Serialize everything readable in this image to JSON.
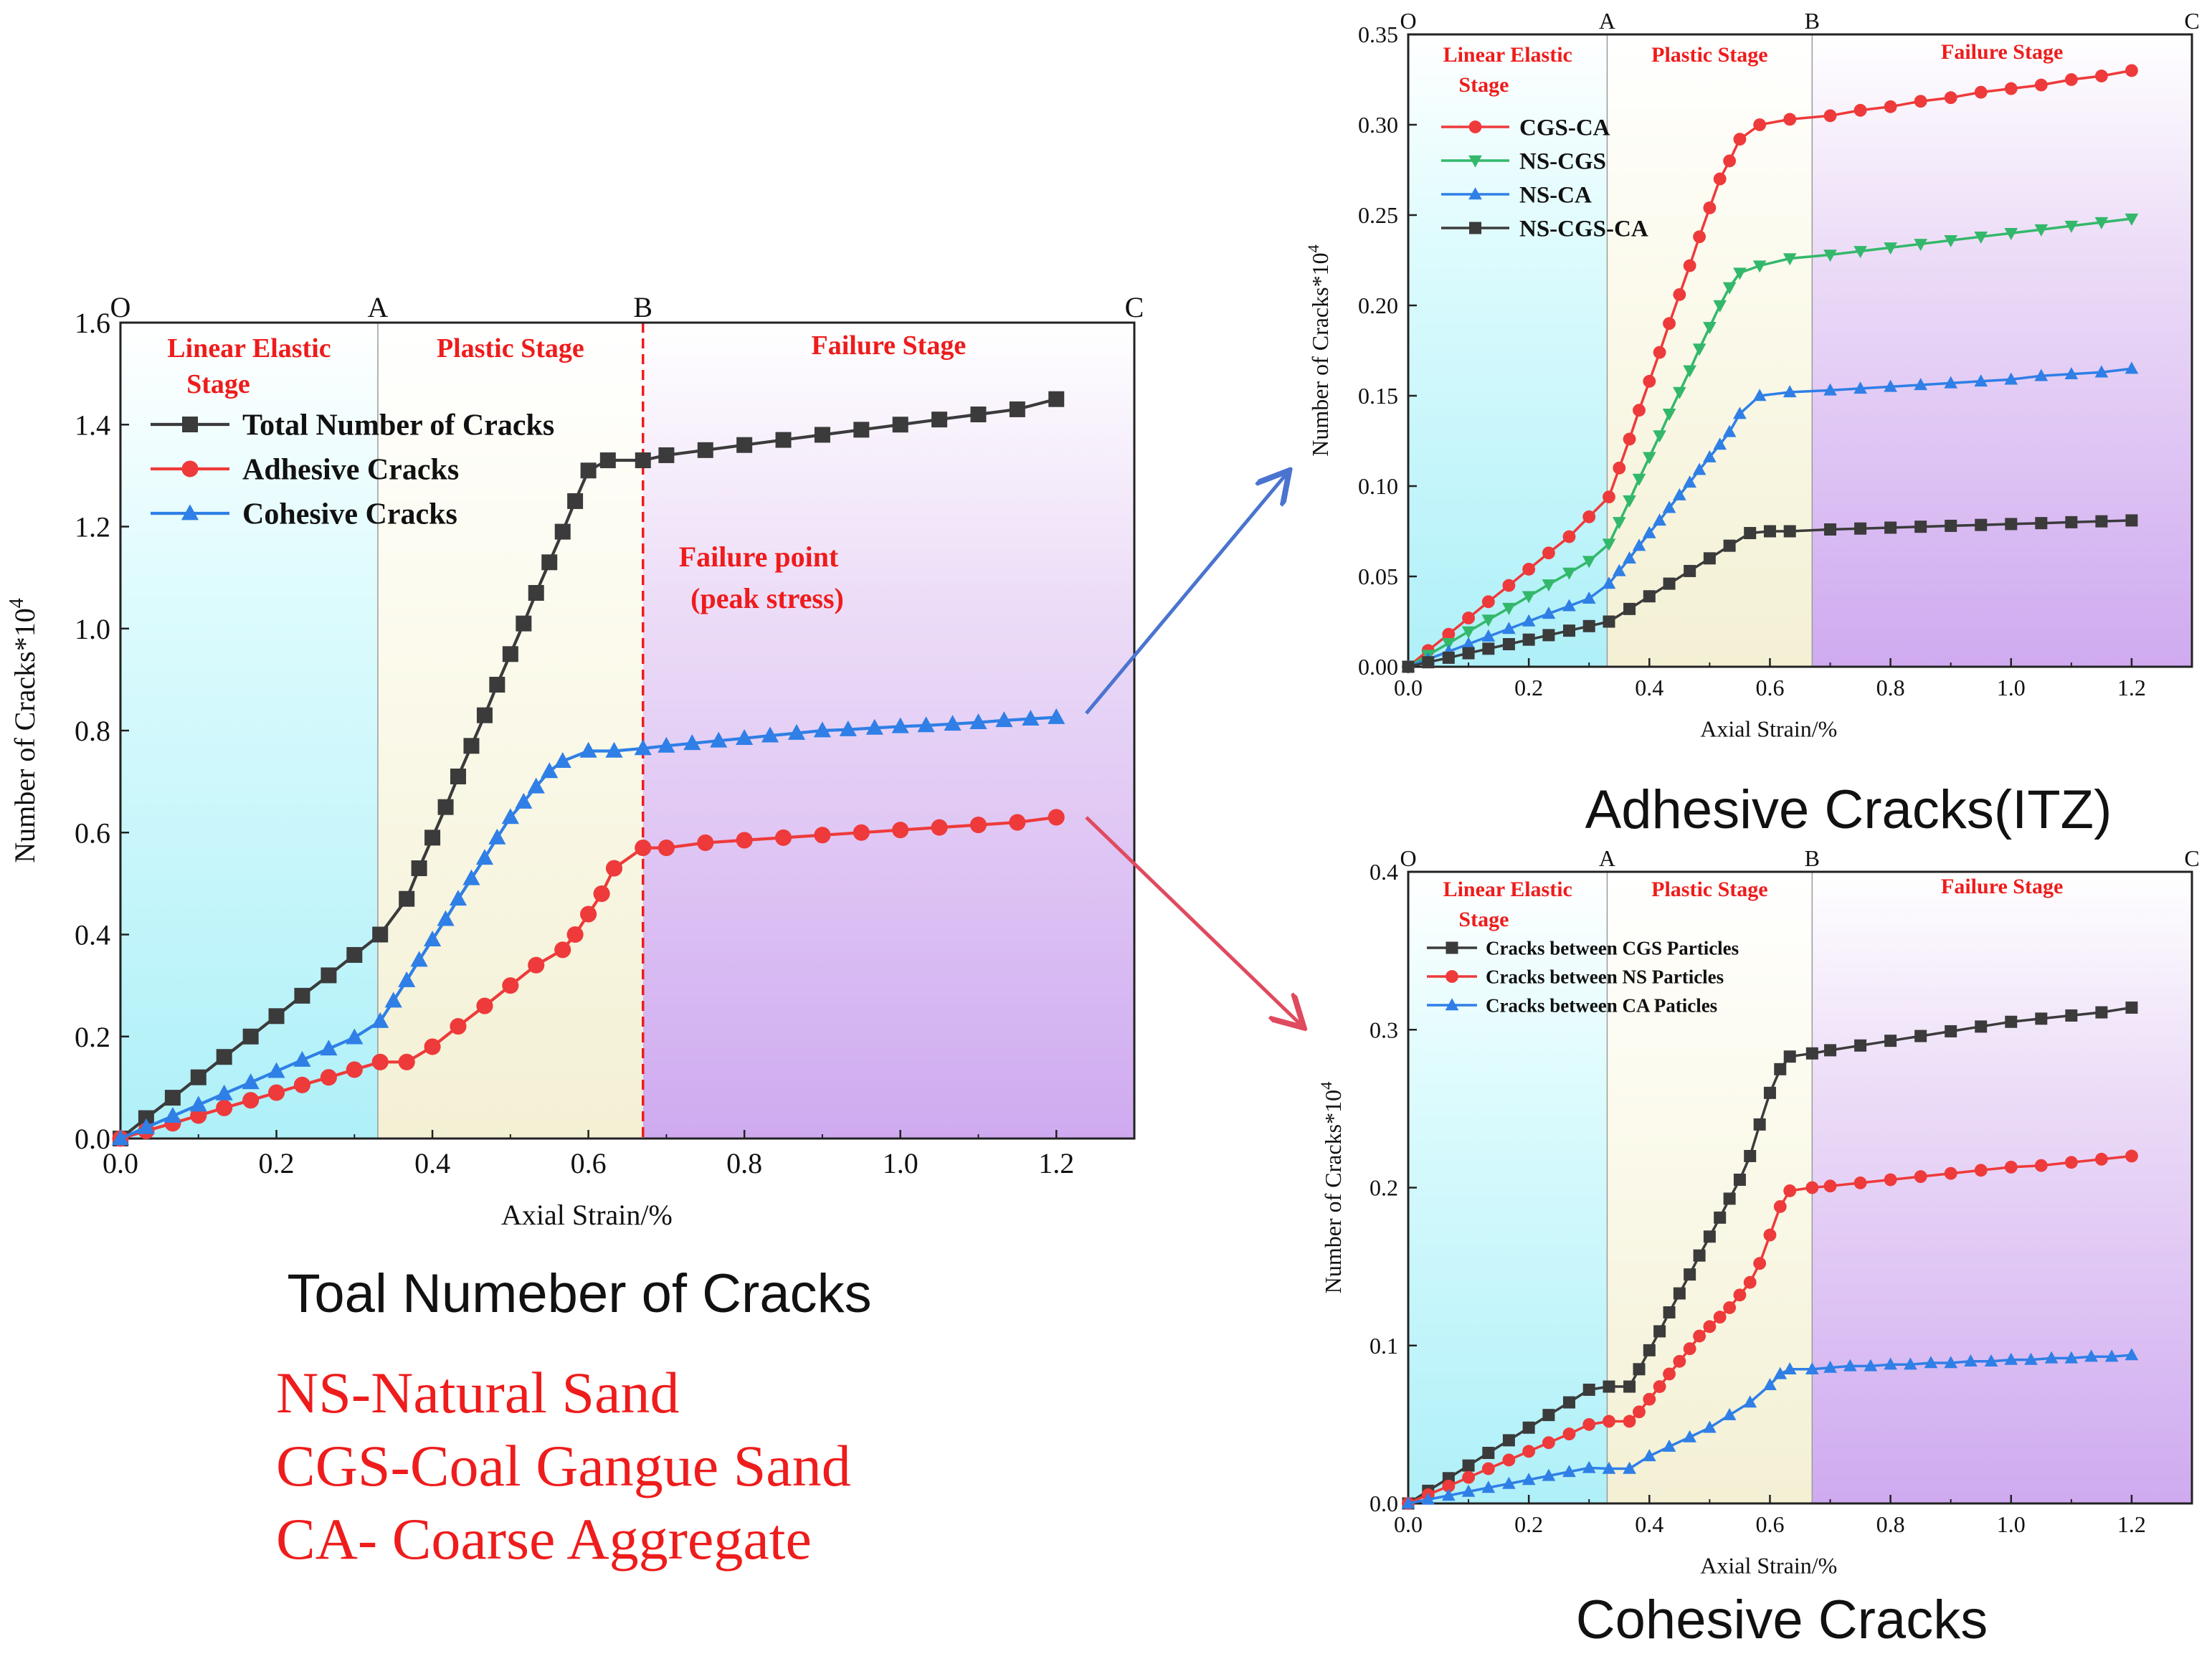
{
  "colors": {
    "stage_linear": "#c9f6fb",
    "stage_plastic": "#f7f5dd",
    "stage_failure": "#dcc0f2",
    "stage_label": "#ee1c1c",
    "black_series": "#3b3b3b",
    "red_series": "#ee3a3a",
    "blue_series": "#2f7fe6",
    "green_series": "#33b86b",
    "arrow_blue": "#4a74cf",
    "arrow_red": "#e04a5e",
    "legend_text_red": "#ee1c1c"
  },
  "titles": {
    "main": "Toal Numeber of Cracks",
    "top_right": "Adhesive Cracks(ITZ)",
    "bottom_right": "Cohesive Cracks"
  },
  "abbreviations": [
    "NS-Natural Sand",
    "CGS-Coal Gangue Sand",
    "CA- Coarse Aggregate"
  ],
  "annotation": {
    "line1": "Failure point",
    "line2": "(peak stress)"
  },
  "chart_data": [
    {
      "id": "main",
      "type": "line",
      "title": "Toal Numeber of Cracks",
      "xlabel": "Axial Strain/%",
      "ylabel": "Number of Cracks*10^4",
      "xlim": [
        0,
        1.3
      ],
      "ylim": [
        0,
        1.6
      ],
      "xticks": [
        "0.0",
        "0.2",
        "0.4",
        "0.6",
        "0.8",
        "1.0",
        "1.2"
      ],
      "yticks": [
        "0.0",
        "0.2",
        "0.4",
        "0.6",
        "0.8",
        "1.0",
        "1.2",
        "1.4",
        "1.6"
      ],
      "stages": {
        "boundaries": [
          0.33,
          0.67
        ],
        "points": [
          "O",
          "A",
          "B",
          "C"
        ],
        "labels": [
          "Linear Elastic",
          "Stage",
          "Plastic Stage",
          "Failure Stage"
        ]
      },
      "failure_line_x": 0.67,
      "series": [
        {
          "name": "Total Number of Cracks",
          "marker": "square",
          "color": "#3b3b3b",
          "x": [
            0,
            0.033,
            0.067,
            0.1,
            0.133,
            0.167,
            0.2,
            0.233,
            0.267,
            0.3,
            0.333,
            0.367,
            0.383,
            0.4,
            0.417,
            0.433,
            0.45,
            0.467,
            0.483,
            0.5,
            0.517,
            0.533,
            0.55,
            0.567,
            0.583,
            0.6,
            0.625,
            0.67,
            0.7,
            0.75,
            0.8,
            0.85,
            0.9,
            0.95,
            1.0,
            1.05,
            1.1,
            1.15,
            1.2
          ],
          "y": [
            0,
            0.04,
            0.08,
            0.12,
            0.16,
            0.2,
            0.24,
            0.28,
            0.32,
            0.36,
            0.4,
            0.47,
            0.53,
            0.59,
            0.65,
            0.71,
            0.77,
            0.83,
            0.89,
            0.95,
            1.01,
            1.07,
            1.13,
            1.19,
            1.25,
            1.31,
            1.33,
            1.33,
            1.34,
            1.35,
            1.36,
            1.37,
            1.38,
            1.39,
            1.4,
            1.41,
            1.42,
            1.43,
            1.45
          ]
        },
        {
          "name": "Adhesive Cracks",
          "marker": "circle",
          "color": "#ee3a3a",
          "x": [
            0,
            0.033,
            0.067,
            0.1,
            0.133,
            0.167,
            0.2,
            0.233,
            0.267,
            0.3,
            0.333,
            0.367,
            0.4,
            0.433,
            0.467,
            0.5,
            0.533,
            0.567,
            0.583,
            0.6,
            0.617,
            0.633,
            0.67,
            0.7,
            0.75,
            0.8,
            0.85,
            0.9,
            0.95,
            1.0,
            1.05,
            1.1,
            1.15,
            1.2
          ],
          "y": [
            0,
            0.015,
            0.03,
            0.045,
            0.06,
            0.075,
            0.09,
            0.105,
            0.12,
            0.135,
            0.15,
            0.15,
            0.18,
            0.22,
            0.26,
            0.3,
            0.34,
            0.37,
            0.4,
            0.44,
            0.48,
            0.53,
            0.57,
            0.57,
            0.58,
            0.585,
            0.59,
            0.595,
            0.6,
            0.605,
            0.61,
            0.615,
            0.62,
            0.63
          ]
        },
        {
          "name": "Cohesive Cracks",
          "marker": "triangle",
          "color": "#2f7fe6",
          "x": [
            0,
            0.033,
            0.067,
            0.1,
            0.133,
            0.167,
            0.2,
            0.233,
            0.267,
            0.3,
            0.333,
            0.35,
            0.367,
            0.383,
            0.4,
            0.417,
            0.433,
            0.45,
            0.467,
            0.483,
            0.5,
            0.517,
            0.533,
            0.55,
            0.567,
            0.6,
            0.633,
            0.67,
            0.7,
            0.733,
            0.767,
            0.8,
            0.833,
            0.867,
            0.9,
            0.933,
            0.967,
            1.0,
            1.033,
            1.067,
            1.1,
            1.133,
            1.167,
            1.2
          ],
          "y": [
            0,
            0.022,
            0.044,
            0.066,
            0.088,
            0.11,
            0.132,
            0.154,
            0.176,
            0.198,
            0.23,
            0.27,
            0.31,
            0.35,
            0.39,
            0.43,
            0.47,
            0.51,
            0.55,
            0.59,
            0.63,
            0.66,
            0.69,
            0.72,
            0.74,
            0.76,
            0.76,
            0.765,
            0.77,
            0.775,
            0.78,
            0.785,
            0.79,
            0.795,
            0.8,
            0.802,
            0.805,
            0.808,
            0.81,
            0.813,
            0.816,
            0.82,
            0.823,
            0.826
          ]
        }
      ]
    },
    {
      "id": "adhesive",
      "type": "line",
      "title": "Adhesive Cracks(ITZ)",
      "xlabel": "Axial Strain/%",
      "ylabel": "Number of Cracks*10^4",
      "xlim": [
        0,
        1.3
      ],
      "ylim": [
        0,
        0.35
      ],
      "xticks": [
        "0.0",
        "0.2",
        "0.4",
        "0.6",
        "0.8",
        "1.0",
        "1.2"
      ],
      "yticks": [
        "0.00",
        "0.05",
        "0.10",
        "0.15",
        "0.20",
        "0.25",
        "0.30",
        "0.35"
      ],
      "stages": {
        "boundaries": [
          0.33,
          0.67
        ],
        "points": [
          "O",
          "A",
          "B",
          "C"
        ],
        "labels": [
          "Linear Elastic",
          "Stage",
          "Plastic Stage",
          "Failure Stage"
        ]
      },
      "series": [
        {
          "name": "CGS-CA",
          "marker": "circle",
          "color": "#ee3a3a",
          "x": [
            0,
            0.033,
            0.067,
            0.1,
            0.133,
            0.167,
            0.2,
            0.233,
            0.267,
            0.3,
            0.333,
            0.35,
            0.367,
            0.383,
            0.4,
            0.417,
            0.433,
            0.45,
            0.467,
            0.483,
            0.5,
            0.517,
            0.533,
            0.55,
            0.583,
            0.633,
            0.7,
            0.75,
            0.8,
            0.85,
            0.9,
            0.95,
            1.0,
            1.05,
            1.1,
            1.15,
            1.2
          ],
          "y": [
            0,
            0.009,
            0.018,
            0.027,
            0.036,
            0.045,
            0.054,
            0.063,
            0.072,
            0.083,
            0.094,
            0.11,
            0.126,
            0.142,
            0.158,
            0.174,
            0.19,
            0.206,
            0.222,
            0.238,
            0.254,
            0.27,
            0.28,
            0.292,
            0.3,
            0.303,
            0.305,
            0.308,
            0.31,
            0.313,
            0.315,
            0.318,
            0.32,
            0.322,
            0.325,
            0.327,
            0.33
          ]
        },
        {
          "name": "NS-CGS",
          "marker": "triangle-down",
          "color": "#33b86b",
          "x": [
            0,
            0.033,
            0.067,
            0.1,
            0.133,
            0.167,
            0.2,
            0.233,
            0.267,
            0.3,
            0.333,
            0.35,
            0.367,
            0.383,
            0.4,
            0.417,
            0.433,
            0.45,
            0.467,
            0.483,
            0.5,
            0.517,
            0.533,
            0.55,
            0.583,
            0.633,
            0.7,
            0.75,
            0.8,
            0.85,
            0.9,
            0.95,
            1.0,
            1.05,
            1.1,
            1.15,
            1.2
          ],
          "y": [
            0,
            0.0065,
            0.013,
            0.0195,
            0.026,
            0.0325,
            0.039,
            0.0455,
            0.052,
            0.0585,
            0.068,
            0.08,
            0.092,
            0.104,
            0.116,
            0.128,
            0.14,
            0.152,
            0.164,
            0.176,
            0.188,
            0.2,
            0.21,
            0.218,
            0.222,
            0.226,
            0.228,
            0.23,
            0.232,
            0.234,
            0.236,
            0.238,
            0.24,
            0.242,
            0.244,
            0.246,
            0.248
          ]
        },
        {
          "name": "NS-CA",
          "marker": "triangle",
          "color": "#2f7fe6",
          "x": [
            0,
            0.033,
            0.067,
            0.1,
            0.133,
            0.167,
            0.2,
            0.233,
            0.267,
            0.3,
            0.333,
            0.35,
            0.367,
            0.383,
            0.4,
            0.417,
            0.433,
            0.45,
            0.467,
            0.483,
            0.5,
            0.517,
            0.533,
            0.55,
            0.583,
            0.633,
            0.7,
            0.75,
            0.8,
            0.85,
            0.9,
            0.95,
            1.0,
            1.05,
            1.1,
            1.15,
            1.2
          ],
          "y": [
            0,
            0.0042,
            0.0084,
            0.0126,
            0.0168,
            0.021,
            0.0252,
            0.0294,
            0.0336,
            0.0378,
            0.046,
            0.053,
            0.06,
            0.067,
            0.074,
            0.081,
            0.088,
            0.095,
            0.102,
            0.109,
            0.116,
            0.123,
            0.13,
            0.14,
            0.15,
            0.152,
            0.153,
            0.154,
            0.155,
            0.156,
            0.157,
            0.158,
            0.159,
            0.161,
            0.162,
            0.163,
            0.165
          ]
        },
        {
          "name": "NS-CGS-CA",
          "marker": "square",
          "color": "#3b3b3b",
          "x": [
            0,
            0.033,
            0.067,
            0.1,
            0.133,
            0.167,
            0.2,
            0.233,
            0.267,
            0.3,
            0.333,
            0.367,
            0.4,
            0.433,
            0.467,
            0.5,
            0.533,
            0.567,
            0.6,
            0.633,
            0.7,
            0.75,
            0.8,
            0.85,
            0.9,
            0.95,
            1.0,
            1.05,
            1.1,
            1.15,
            1.2
          ],
          "y": [
            0,
            0.0025,
            0.005,
            0.0075,
            0.01,
            0.0125,
            0.015,
            0.0175,
            0.02,
            0.0225,
            0.025,
            0.032,
            0.039,
            0.046,
            0.053,
            0.06,
            0.067,
            0.074,
            0.075,
            0.075,
            0.076,
            0.0765,
            0.077,
            0.0775,
            0.078,
            0.0785,
            0.079,
            0.0795,
            0.08,
            0.0805,
            0.081
          ]
        }
      ]
    },
    {
      "id": "cohesive",
      "type": "line",
      "title": "Cohesive Cracks",
      "xlabel": "Axial Strain/%",
      "ylabel": "Number of Cracks*10^4",
      "xlim": [
        0,
        1.3
      ],
      "ylim": [
        0,
        0.4
      ],
      "xticks": [
        "0.0",
        "0.2",
        "0.4",
        "0.6",
        "0.8",
        "1.0",
        "1.2"
      ],
      "yticks": [
        "0.0",
        "0.1",
        "0.2",
        "0.3",
        "0.4"
      ],
      "stages": {
        "boundaries": [
          0.33,
          0.67
        ],
        "points": [
          "O",
          "A",
          "B",
          "C"
        ],
        "labels": [
          "Linear Elastic",
          "Stage",
          "Plastic Stage",
          "Failure Stage"
        ]
      },
      "series": [
        {
          "name": "Cracks between CGS Particles",
          "marker": "square",
          "color": "#3b3b3b",
          "x": [
            0,
            0.033,
            0.067,
            0.1,
            0.133,
            0.167,
            0.2,
            0.233,
            0.267,
            0.3,
            0.333,
            0.367,
            0.383,
            0.4,
            0.417,
            0.433,
            0.45,
            0.467,
            0.483,
            0.5,
            0.517,
            0.533,
            0.55,
            0.567,
            0.583,
            0.6,
            0.617,
            0.633,
            0.67,
            0.7,
            0.75,
            0.8,
            0.85,
            0.9,
            0.95,
            1.0,
            1.05,
            1.1,
            1.15,
            1.2
          ],
          "y": [
            0,
            0.008,
            0.016,
            0.024,
            0.032,
            0.04,
            0.048,
            0.056,
            0.064,
            0.072,
            0.074,
            0.074,
            0.085,
            0.097,
            0.109,
            0.121,
            0.133,
            0.145,
            0.157,
            0.169,
            0.181,
            0.193,
            0.205,
            0.22,
            0.24,
            0.26,
            0.275,
            0.283,
            0.285,
            0.287,
            0.29,
            0.293,
            0.296,
            0.299,
            0.302,
            0.305,
            0.307,
            0.309,
            0.311,
            0.314
          ]
        },
        {
          "name": "Cracks between NS Particles",
          "marker": "circle",
          "color": "#ee3a3a",
          "x": [
            0,
            0.033,
            0.067,
            0.1,
            0.133,
            0.167,
            0.2,
            0.233,
            0.267,
            0.3,
            0.333,
            0.367,
            0.383,
            0.4,
            0.417,
            0.433,
            0.45,
            0.467,
            0.483,
            0.5,
            0.517,
            0.533,
            0.55,
            0.567,
            0.583,
            0.6,
            0.617,
            0.633,
            0.67,
            0.7,
            0.75,
            0.8,
            0.85,
            0.9,
            0.95,
            1.0,
            1.05,
            1.1,
            1.15,
            1.2
          ],
          "y": [
            0,
            0.0055,
            0.011,
            0.0165,
            0.022,
            0.0275,
            0.033,
            0.0385,
            0.044,
            0.05,
            0.052,
            0.052,
            0.058,
            0.066,
            0.074,
            0.082,
            0.09,
            0.098,
            0.106,
            0.112,
            0.118,
            0.124,
            0.132,
            0.14,
            0.152,
            0.17,
            0.188,
            0.198,
            0.2,
            0.201,
            0.203,
            0.205,
            0.207,
            0.209,
            0.211,
            0.213,
            0.214,
            0.216,
            0.218,
            0.22
          ]
        },
        {
          "name": "Cracks between CA Paticles",
          "marker": "triangle",
          "color": "#2f7fe6",
          "x": [
            0,
            0.033,
            0.067,
            0.1,
            0.133,
            0.167,
            0.2,
            0.233,
            0.267,
            0.3,
            0.333,
            0.367,
            0.4,
            0.433,
            0.467,
            0.5,
            0.533,
            0.567,
            0.6,
            0.617,
            0.633,
            0.67,
            0.7,
            0.733,
            0.767,
            0.8,
            0.833,
            0.867,
            0.9,
            0.933,
            0.967,
            1.0,
            1.033,
            1.067,
            1.1,
            1.133,
            1.167,
            1.2
          ],
          "y": [
            0,
            0.0025,
            0.005,
            0.0075,
            0.01,
            0.0125,
            0.015,
            0.0175,
            0.02,
            0.0225,
            0.022,
            0.022,
            0.03,
            0.036,
            0.042,
            0.048,
            0.056,
            0.064,
            0.075,
            0.082,
            0.085,
            0.085,
            0.086,
            0.087,
            0.087,
            0.088,
            0.088,
            0.089,
            0.089,
            0.09,
            0.09,
            0.091,
            0.091,
            0.092,
            0.092,
            0.093,
            0.093,
            0.094
          ]
        }
      ]
    }
  ]
}
